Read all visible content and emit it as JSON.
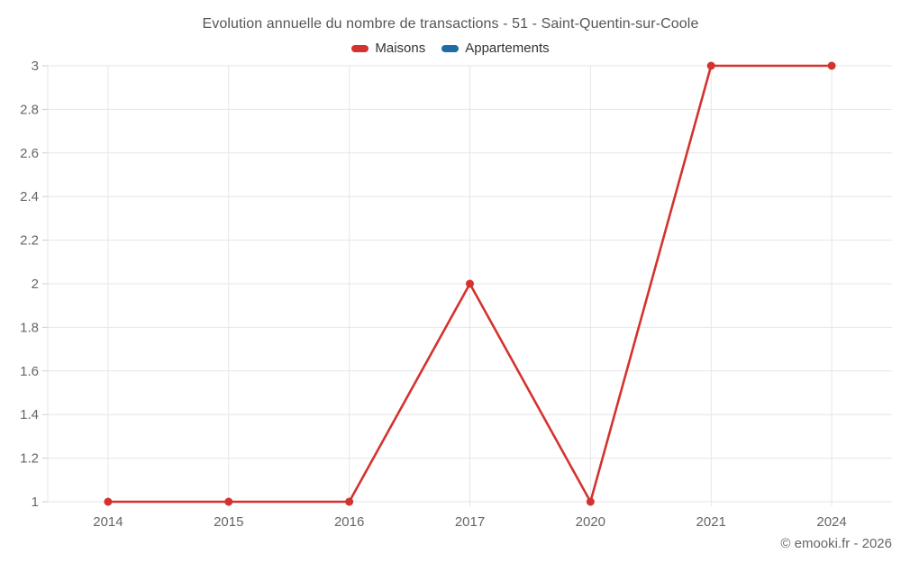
{
  "title": "Evolution annuelle du nombre de transactions - 51 - Saint-Quentin-sur-Coole",
  "credit": "© emooki.fr - 2026",
  "legend": [
    {
      "label": "Maisons",
      "color": "#d3332e"
    },
    {
      "label": "Appartements",
      "color": "#1c6ea4"
    }
  ],
  "colors": {
    "maisons_series": "#d3332e",
    "appartements_series": "#1c6ea4",
    "gridline": "#e6e6e6",
    "tick": "#cccccc",
    "axis_label": "#666666",
    "title_text": "#565656",
    "legend_text": "#333333",
    "credit_text": "#666666",
    "background": "#ffffff"
  },
  "chart_data": {
    "type": "line",
    "title": "Evolution annuelle du nombre de transactions - 51 - Saint-Quentin-sur-Coole",
    "categories": [
      "2014",
      "2015",
      "2016",
      "2017",
      "2020",
      "2021",
      "2024"
    ],
    "series": [
      {
        "name": "Maisons",
        "color": "#d3332e",
        "values": [
          1,
          1,
          1,
          2,
          1,
          3,
          3
        ]
      },
      {
        "name": "Appartements",
        "color": "#1c6ea4",
        "values": []
      }
    ],
    "xlabel": "",
    "ylabel": "",
    "ylim": [
      1,
      3
    ],
    "yticks": [
      1,
      1.2,
      1.4,
      1.6,
      1.8,
      2,
      2.2,
      2.4,
      2.6,
      2.8,
      3
    ],
    "grid": true,
    "legend_position": "top"
  }
}
